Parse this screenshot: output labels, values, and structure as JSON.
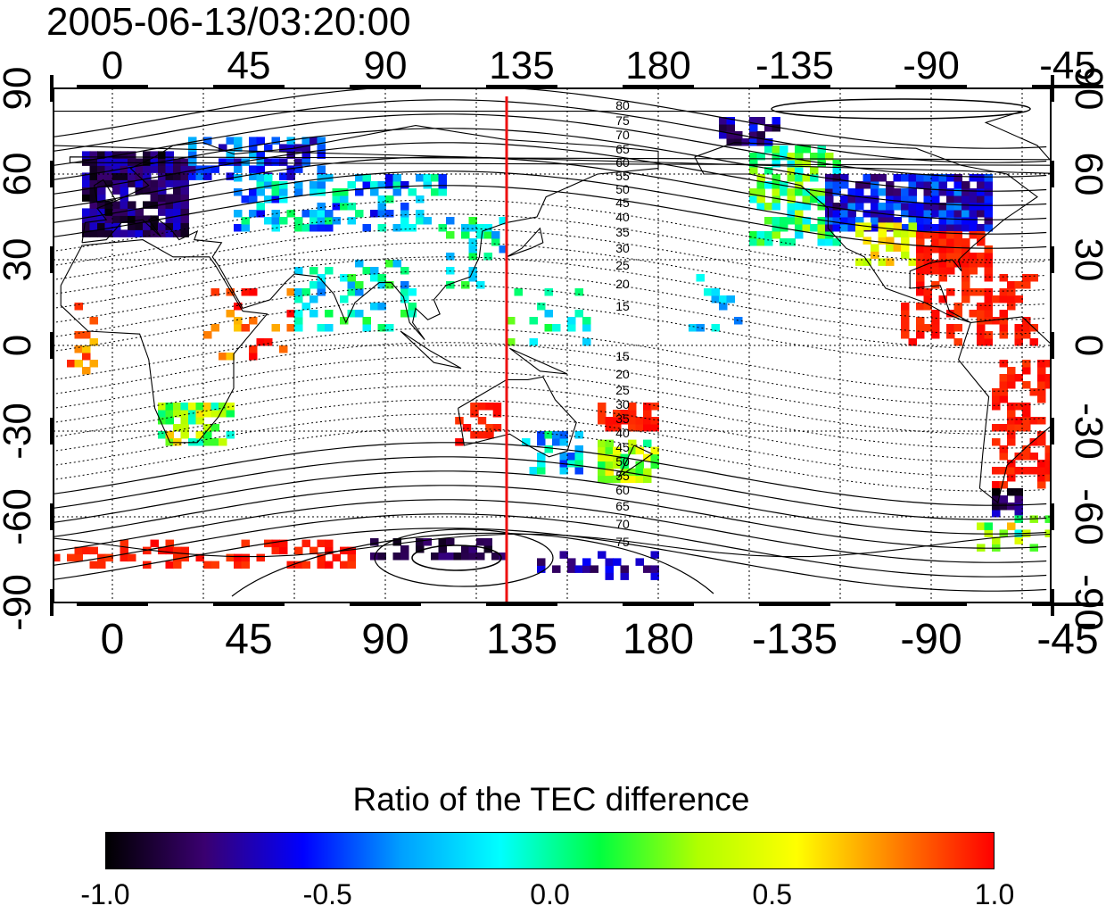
{
  "title": "2005-06-13/03:20:00",
  "map": {
    "top_lon_ticks": [
      "0",
      "45",
      "90",
      "135",
      "180",
      "-135",
      "-90",
      "-45"
    ],
    "bottom_lon_ticks": [
      "0",
      "45",
      "90",
      "135",
      "180",
      "-135",
      "-90",
      "-45"
    ],
    "left_lat_ticks": [
      "90",
      "60",
      "30",
      "0",
      "-30",
      "-60",
      "-90"
    ],
    "right_lat_ticks": [
      "90",
      "60",
      "30",
      "0",
      "-30",
      "-60",
      "-90"
    ],
    "contour_labels_north": [
      "80",
      "75",
      "70",
      "65",
      "60",
      "55",
      "50",
      "45",
      "40",
      "35",
      "30",
      "25",
      "20",
      "15"
    ],
    "contour_labels_south": [
      "15",
      "20",
      "25",
      "30",
      "35",
      "40",
      "45",
      "50",
      "55",
      "60",
      "65",
      "70",
      "75"
    ],
    "marker_line": {
      "longitude": 130,
      "color": "#ee1111"
    },
    "colors": {
      "land_outline": "#000000",
      "grid": "#000000"
    }
  },
  "colorbar": {
    "title": "Ratio of the TEC difference",
    "min": -1.0,
    "max": 1.0,
    "tick_labels": [
      "-1.0",
      "-0.5",
      "0.0",
      "0.5",
      "1.0"
    ],
    "colors": [
      "#000000",
      "#3a0070",
      "#0000ff",
      "#00a0ff",
      "#00ffff",
      "#00ff40",
      "#b0ff00",
      "#ffff00",
      "#ff8000",
      "#ff0000"
    ]
  }
}
